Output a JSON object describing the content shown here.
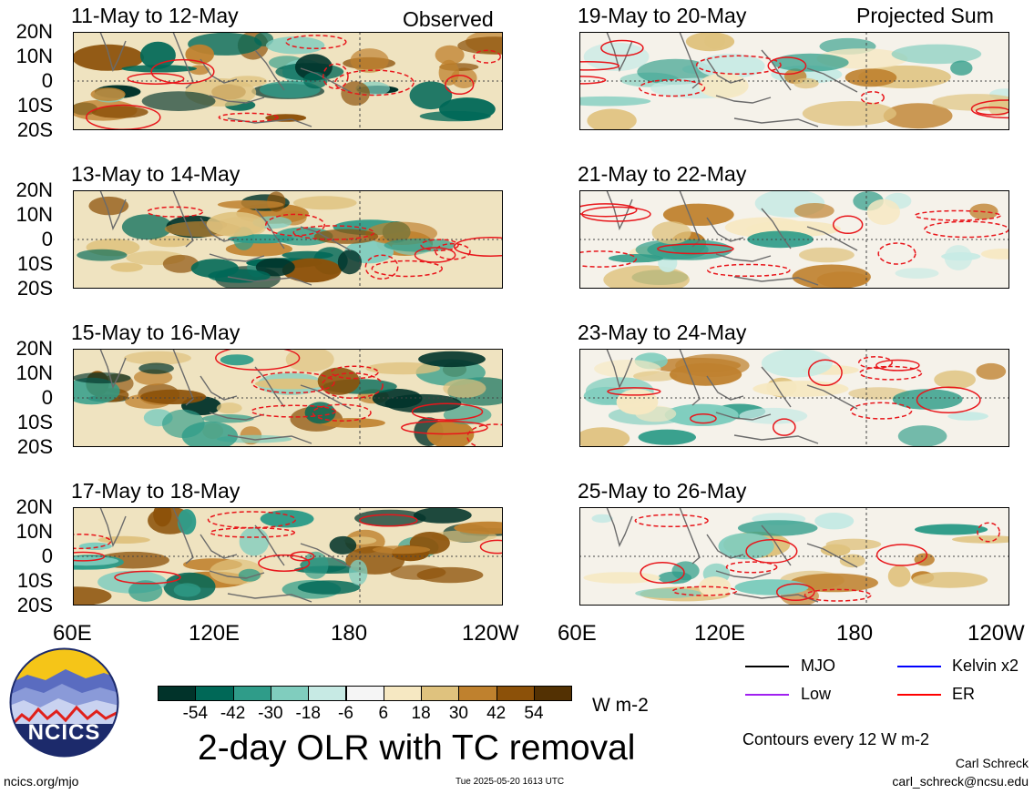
{
  "header": {
    "observed_label": "Observed",
    "projected_label": "Projected Sum"
  },
  "lat_labels": [
    "20N",
    "10N",
    "0",
    "10S",
    "20S"
  ],
  "lon_labels": [
    "60E",
    "120E",
    "180",
    "120W"
  ],
  "panels_left": [
    {
      "title": "11-May to 12-May"
    },
    {
      "title": "13-May to 14-May"
    },
    {
      "title": "15-May to 16-May"
    },
    {
      "title": "17-May to 18-May"
    }
  ],
  "panels_right": [
    {
      "title": "19-May to 20-May"
    },
    {
      "title": "21-May to 22-May"
    },
    {
      "title": "23-May to 24-May"
    },
    {
      "title": "25-May to 26-May"
    }
  ],
  "colorbar": {
    "colors": [
      "#01332a",
      "#006857",
      "#2f9c89",
      "#80cdbe",
      "#c7eae4",
      "#f5f5f5",
      "#f6e8c2",
      "#dfc27e",
      "#bf812e",
      "#8c5109",
      "#533103"
    ],
    "ticks": [
      "-54",
      "-42",
      "-30",
      "-18",
      "-6",
      "6",
      "18",
      "30",
      "42",
      "54"
    ],
    "unit": "W m-2"
  },
  "legend": {
    "items": [
      {
        "label": "MJO",
        "color": "#000000"
      },
      {
        "label": "Kelvin x2",
        "color": "#0000ff"
      },
      {
        "label": "Low",
        "color": "#a020f0"
      },
      {
        "label": "ER",
        "color": "#ff0000"
      }
    ],
    "contour_note": "Contours every 12 W m-2"
  },
  "footer": {
    "title": "2-day OLR with TC removal",
    "logo_text": "NCICS",
    "site": "ncics.org/mjo",
    "timestamp": "Tue 2025-05-20 1613 UTC",
    "author": "Carl Schreck",
    "email": "carl_schreck@ncsu.edu"
  }
}
